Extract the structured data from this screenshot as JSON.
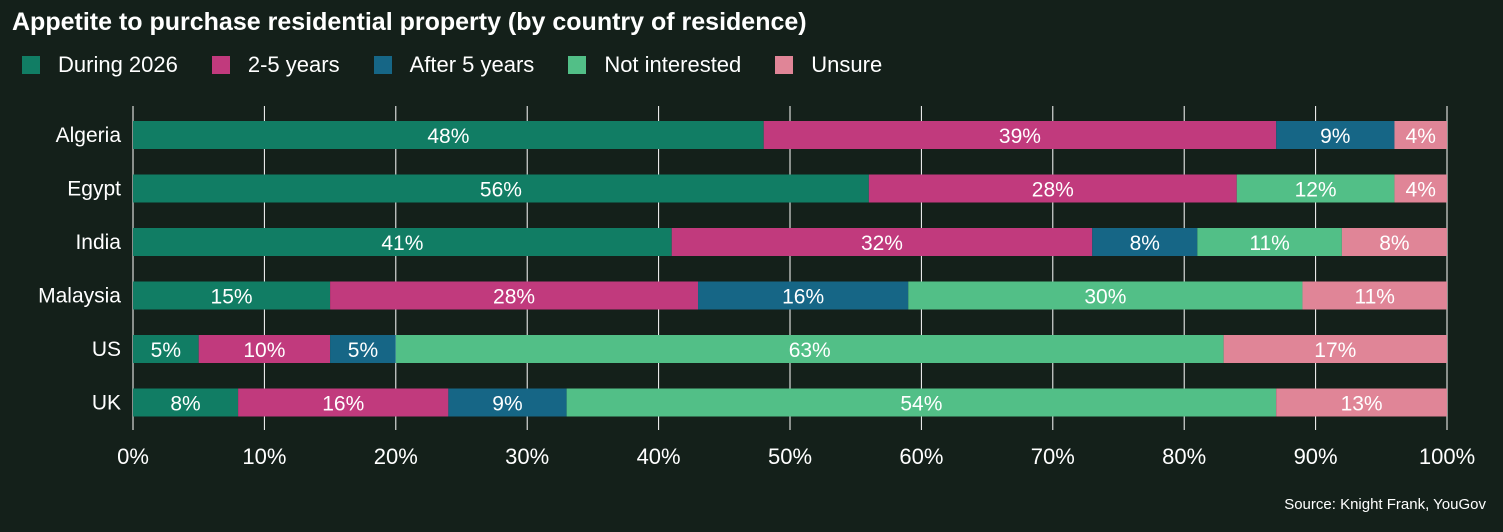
{
  "chart_data": {
    "type": "bar",
    "orientation": "horizontal",
    "stacked": true,
    "title": "Appetite to purchase residential property (by country of residence)",
    "categories": [
      "Algeria",
      "Egypt",
      "India",
      "Malaysia",
      "US",
      "UK"
    ],
    "series": [
      {
        "name": "During 2026",
        "color": "#117d64",
        "values": [
          48,
          56,
          41,
          15,
          5,
          8
        ]
      },
      {
        "name": "2-5 years",
        "color": "#c13a7d",
        "values": [
          39,
          28,
          32,
          28,
          10,
          16
        ]
      },
      {
        "name": "After 5 years",
        "color": "#166686",
        "values": [
          9,
          0,
          8,
          16,
          5,
          9
        ]
      },
      {
        "name": "Not interested",
        "color": "#52bf87",
        "values": [
          0,
          12,
          11,
          30,
          63,
          54
        ]
      },
      {
        "name": "Unsure",
        "color": "#e08597",
        "values": [
          4,
          4,
          8,
          11,
          17,
          13
        ]
      }
    ],
    "xlim": [
      0,
      100
    ],
    "xticks": [
      "0%",
      "10%",
      "20%",
      "30%",
      "40%",
      "50%",
      "60%",
      "70%",
      "80%",
      "90%",
      "100%"
    ],
    "grid": true,
    "legend_position": "top-left",
    "source": "Source: Knight Frank, YouGov",
    "background": "#14201a"
  }
}
